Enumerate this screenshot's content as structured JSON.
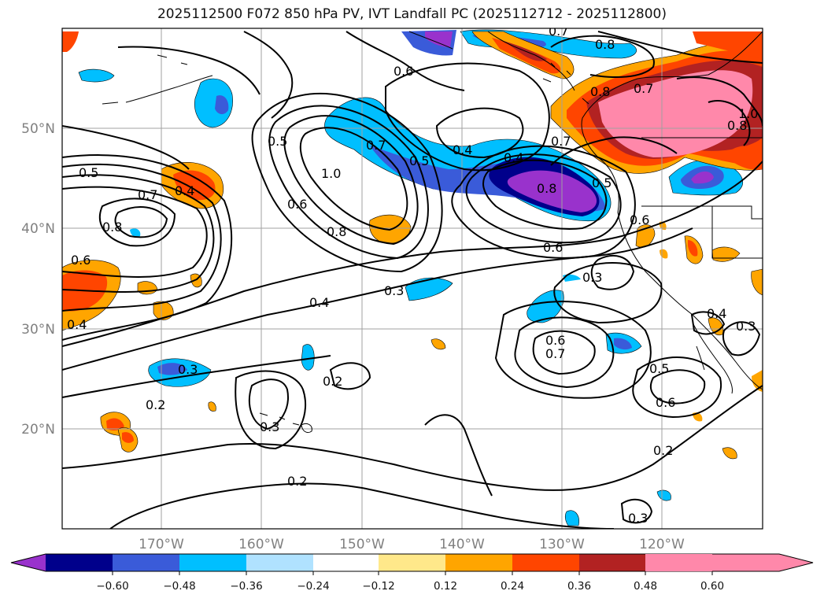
{
  "title": "2025112500 F072 850 hPa PV, IVT Landfall PC (2025112712 - 2025112800)",
  "map": {
    "longitude_labels": [
      "170°W",
      "160°W",
      "150°W",
      "140°W",
      "130°W",
      "120°W"
    ],
    "latitude_labels": [
      "50°N",
      "40°N",
      "30°N",
      "20°N"
    ],
    "contour_labels": [
      "0.6",
      "0.8",
      "0.5",
      "0.7",
      "0.4",
      "0.8",
      "0.6",
      "0.4",
      "0.7",
      "1.0",
      "0.5",
      "0.8",
      "0.5",
      "0.6",
      "0.7",
      "0.8",
      "0.5",
      "0.7",
      "0.4",
      "0.8",
      "0.7",
      "0.6",
      "0.4",
      "0.8",
      "0.6",
      "0.3",
      "0.4",
      "0.3",
      "0.6",
      "0.7",
      "0.5",
      "0.6",
      "0.2",
      "0.3",
      "0.2",
      "0.3",
      "0.2",
      "0.2",
      "0.3",
      "0.4",
      "0.3",
      "1.0"
    ]
  },
  "colorbar": {
    "ticks": [
      "−0.60",
      "−0.48",
      "−0.36",
      "−0.24",
      "−0.12",
      "0.12",
      "0.24",
      "0.36",
      "0.48",
      "0.60"
    ],
    "colors": [
      "#9932cc",
      "#00008b",
      "#3a5bd9",
      "#00bfff",
      "#b0e2ff",
      "#ffffff",
      "#ffe88a",
      "#ffa500",
      "#ff4500",
      "#b22222",
      "#ff88aa"
    ]
  }
}
